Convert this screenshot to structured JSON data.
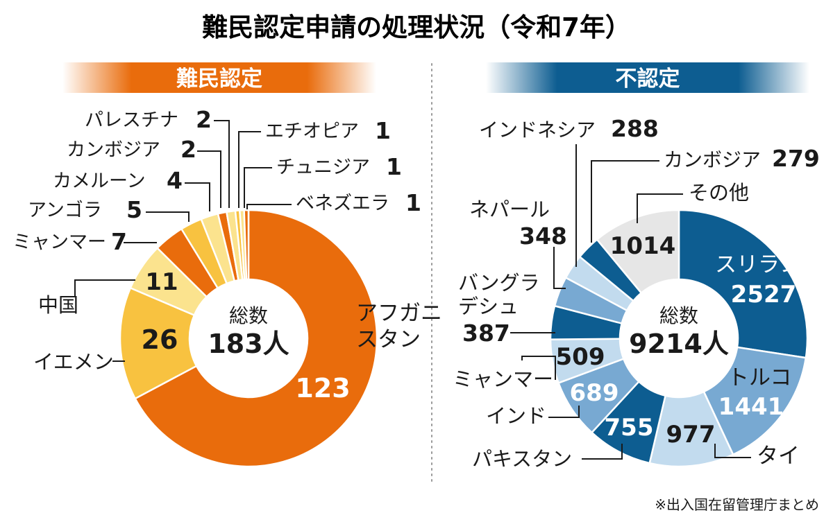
{
  "title": "難民認定申請の処理状況（令和7年）",
  "source": "※出入国在留管理庁まとめ",
  "colors": {
    "orange_dark": "#e96c0c",
    "orange_mid": "#f5a82b",
    "yellow": "#f8c240",
    "yellow_light": "#fbe38e",
    "blue_dark": "#0d5d91",
    "blue_mid": "#78a9d2",
    "blue_light": "#c2dbee",
    "gray": "#e6e6e6"
  },
  "chart_data": [
    {
      "type": "pie",
      "title": "難民認定",
      "center_label": "総数",
      "total": "183人",
      "categories": [
        "アフガニスタン",
        "イエメン",
        "中国",
        "ミャンマー",
        "アンゴラ",
        "カメルーン",
        "カンボジア",
        "パレスチナ",
        "エチオピア",
        "チュニジア",
        "ベネズエラ"
      ],
      "values": [
        123,
        26,
        11,
        7,
        5,
        4,
        2,
        2,
        1,
        1,
        1
      ],
      "colors": [
        "#e96c0c",
        "#f8c240",
        "#fbe38e",
        "#e96c0c",
        "#f8c240",
        "#fbe38e",
        "#e96c0c",
        "#fbe38e",
        "#f8c240",
        "#fbe38e",
        "#e96c0c"
      ],
      "label_texts": {
        "アフガニスタン": [
          "アフガニ",
          "スタン"
        ],
        "中国": [
          "中国"
        ],
        "イエメン": [
          "イエメン"
        ]
      }
    },
    {
      "type": "pie",
      "title": "不認定",
      "center_label": "総数",
      "total": "9214人",
      "categories": [
        "スリランカ",
        "トルコ",
        "タイ",
        "パキスタン",
        "インド",
        "ミャンマー",
        "バングラデシュ",
        "ネパール",
        "インドネシア",
        "カンボジア",
        "その他"
      ],
      "values": [
        2527,
        1441,
        977,
        755,
        689,
        509,
        387,
        348,
        288,
        279,
        1014
      ],
      "colors": [
        "#0d5d91",
        "#78a9d2",
        "#c2dbee",
        "#0d5d91",
        "#78a9d2",
        "#c2dbee",
        "#0d5d91",
        "#78a9d2",
        "#c2dbee",
        "#0d5d91",
        "#e6e6e6"
      ],
      "label_texts": {
        "スリランカ": [
          "スリランカ"
        ],
        "トルコ": [
          "トルコ"
        ],
        "タイ": [
          "タイ"
        ],
        "パキスタン": [
          "パキスタン"
        ],
        "インド": [
          "インド"
        ],
        "ミャンマー": [
          "ミャンマー"
        ],
        "バングラデシュ": [
          "バングラ",
          "デシュ"
        ],
        "ネパール": [
          "ネパール"
        ],
        "インドネシア": [
          "インドネシア"
        ],
        "カンボジア": [
          "カンボジア"
        ],
        "その他": [
          "その他"
        ]
      }
    }
  ]
}
